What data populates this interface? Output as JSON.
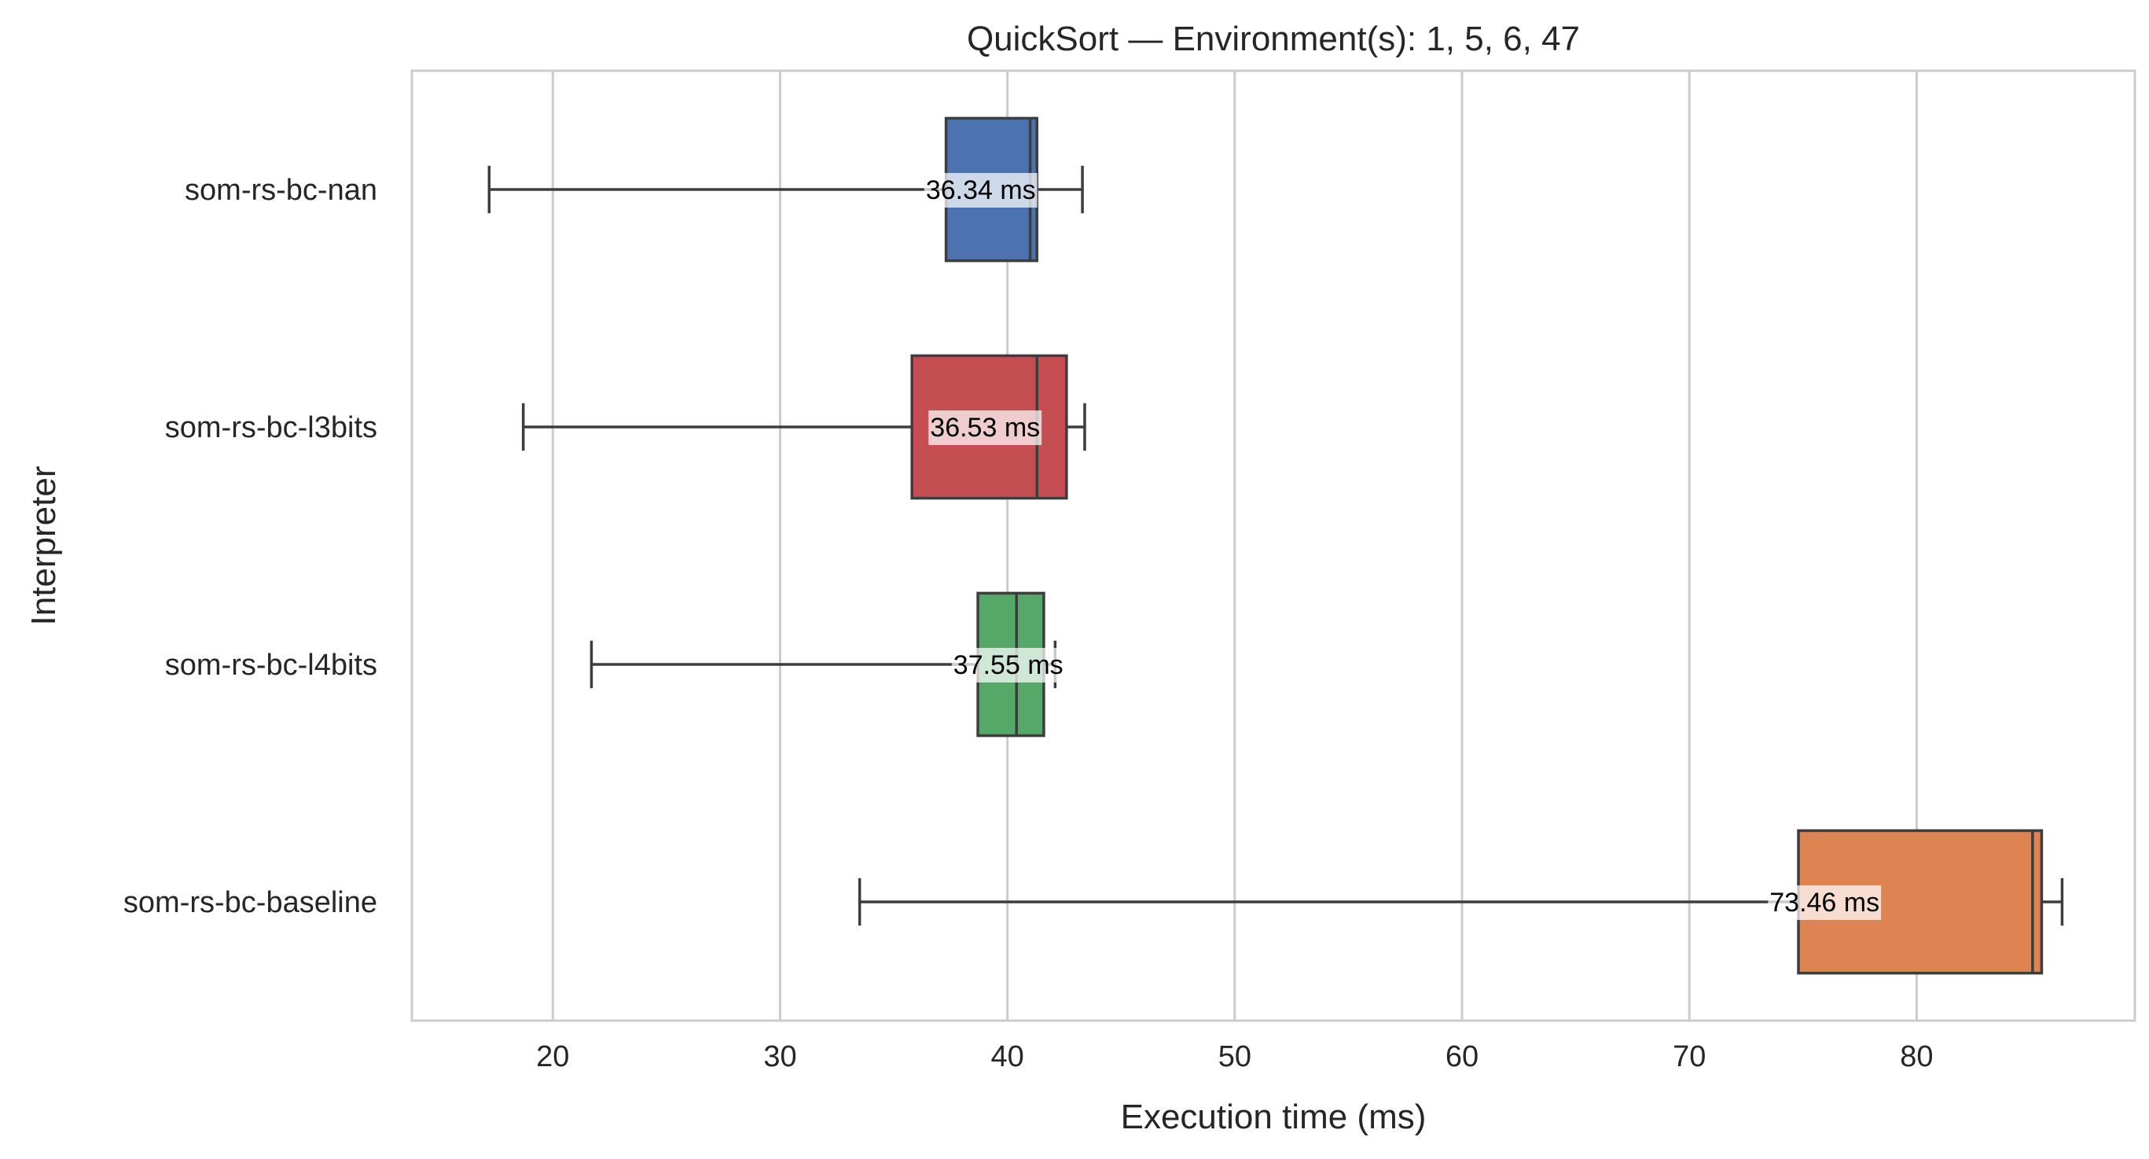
{
  "chart_data": {
    "type": "boxplot",
    "orientation": "horizontal",
    "title": "QuickSort — Environment(s): 1, 5, 6, 47",
    "xlabel": "Execution time (ms)",
    "ylabel": "Interpreter",
    "xlim": [
      13.8,
      89.6
    ],
    "xticks": [
      20,
      30,
      40,
      50,
      60,
      70,
      80
    ],
    "grid": "vertical",
    "unit_suffix": " ms",
    "series": [
      {
        "name": "som-rs-bc-nan",
        "color": "#4c72b0",
        "whisker_low": 17.2,
        "q1": 37.3,
        "median": 41.0,
        "q3": 41.3,
        "whisker_high": 43.3,
        "annotation": "36.34 ms",
        "ann_value": 36.34
      },
      {
        "name": "som-rs-bc-l3bits",
        "color": "#c44e52",
        "whisker_low": 18.7,
        "q1": 35.8,
        "median": 41.3,
        "q3": 42.6,
        "whisker_high": 43.4,
        "annotation": "36.53 ms",
        "ann_value": 36.53
      },
      {
        "name": "som-rs-bc-l4bits",
        "color": "#55a868",
        "whisker_low": 21.7,
        "q1": 38.7,
        "median": 40.4,
        "q3": 41.6,
        "whisker_high": 42.1,
        "annotation": "37.55 ms",
        "ann_value": 37.55
      },
      {
        "name": "som-rs-bc-baseline",
        "color": "#dd8452",
        "whisker_low": 33.5,
        "q1": 74.8,
        "median": 85.1,
        "q3": 85.5,
        "whisker_high": 86.4,
        "annotation": "73.46 ms",
        "ann_value": 73.46
      }
    ]
  }
}
